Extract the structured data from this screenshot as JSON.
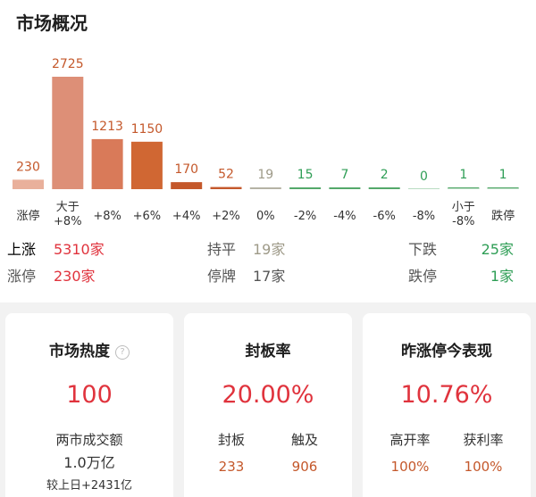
{
  "title": "市场概况",
  "chart_data": {
    "type": "bar",
    "categories": [
      "涨停",
      "大于\n+8%",
      "+8%",
      "+6%",
      "+4%",
      "+2%",
      "0%",
      "-2%",
      "-4%",
      "-6%",
      "-8%",
      "小于\n-8%",
      "跌停"
    ],
    "values": [
      230,
      2725,
      1213,
      1150,
      170,
      52,
      19,
      15,
      7,
      2,
      0,
      1,
      1
    ],
    "colors": [
      "#e9b09b",
      "#dd8f77",
      "#d97a59",
      "#d06733",
      "#c4582b",
      "#c4582b",
      "#b5b3a5",
      "#54a86a",
      "#54a86a",
      "#54a86a",
      "#54a86a",
      "#54a86a",
      "#54a86a"
    ],
    "value_colors": [
      "#c4582b",
      "#c4582b",
      "#c4582b",
      "#c4582b",
      "#c4582b",
      "#c4582b",
      "#9e9a88",
      "#2f9e56",
      "#2f9e56",
      "#2f9e56",
      "#2f9e56",
      "#2f9e56",
      "#2f9e56"
    ]
  },
  "stats": {
    "up": {
      "label": "上涨",
      "value": "5310家"
    },
    "flat": {
      "label": "持平",
      "value": "19家"
    },
    "down": {
      "label": "下跌",
      "value": "25家"
    },
    "limit_up": {
      "label": "涨停",
      "value": "230家"
    },
    "suspended": {
      "label": "停牌",
      "value": "17家"
    },
    "limit_down": {
      "label": "跌停",
      "value": "1家"
    }
  },
  "cards": {
    "heat": {
      "title": "市场热度",
      "value": "100",
      "turnover_label": "两市成交额",
      "turnover": "1.0万亿",
      "change": "较上日+2431亿"
    },
    "seal": {
      "title": "封板率",
      "value": "20.00%",
      "left_label": "封板",
      "left_value": "233",
      "right_label": "触及",
      "right_value": "906"
    },
    "yesterday": {
      "title": "昨涨停今表现",
      "value": "10.76%",
      "left_label": "高开率",
      "left_value": "100%",
      "right_label": "获利率",
      "right_value": "100%"
    }
  },
  "colors": {
    "red": "#e0333d",
    "green": "#2f9e56",
    "gray": "#9e9a88"
  }
}
